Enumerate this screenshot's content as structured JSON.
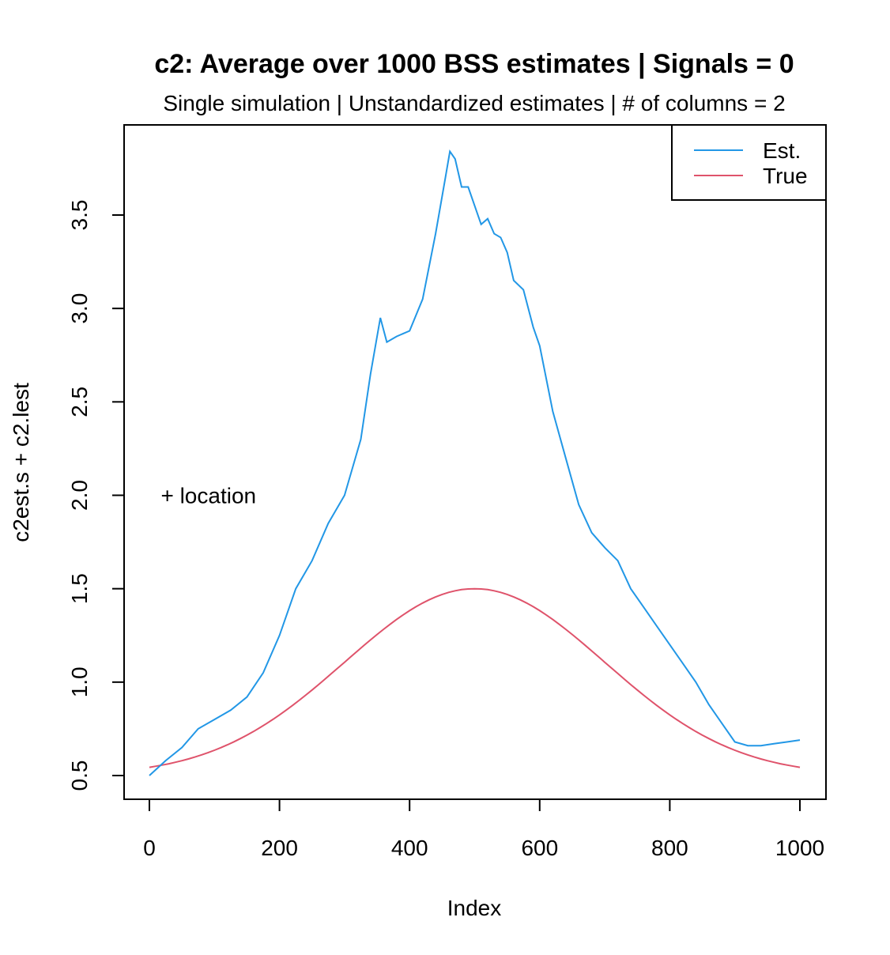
{
  "chart_data": {
    "type": "line",
    "title": "c2: Average over 1000 BSS estimates  |  Signals = 0",
    "subtitle": "Single simulation  |  Unstandardized estimates  |  # of columns = 2",
    "xlabel": "Index",
    "ylabel": "c2est.s + c2.lest",
    "xlim": [
      0,
      1000
    ],
    "ylim": [
      0.5,
      3.85
    ],
    "x_ticks": [
      0,
      200,
      400,
      600,
      800,
      1000
    ],
    "x_tick_labels": [
      "0",
      "200",
      "400",
      "600",
      "800",
      "1000"
    ],
    "y_ticks": [
      0.5,
      1.0,
      1.5,
      2.0,
      2.5,
      3.0,
      3.5
    ],
    "y_tick_labels": [
      "0.5",
      "1.0",
      "1.5",
      "2.0",
      "2.5",
      "3.0",
      "3.5"
    ],
    "grid": false,
    "legend_position": "top-right",
    "annotation": {
      "text": "+ location",
      "x": 20,
      "y": 2.0
    },
    "series": [
      {
        "name": "Est.",
        "color": "#2297E6",
        "x": [
          0,
          25,
          50,
          75,
          100,
          125,
          150,
          175,
          200,
          225,
          250,
          275,
          300,
          325,
          340,
          355,
          365,
          380,
          400,
          420,
          440,
          455,
          462,
          470,
          480,
          490,
          500,
          510,
          520,
          530,
          540,
          550,
          560,
          575,
          590,
          600,
          620,
          640,
          660,
          680,
          700,
          720,
          740,
          760,
          780,
          800,
          820,
          840,
          860,
          880,
          900,
          920,
          940,
          960,
          980,
          1000
        ],
        "y": [
          0.5,
          0.58,
          0.65,
          0.75,
          0.8,
          0.85,
          0.92,
          1.05,
          1.25,
          1.5,
          1.65,
          1.85,
          2.0,
          2.3,
          2.65,
          2.95,
          2.82,
          2.85,
          2.88,
          3.05,
          3.4,
          3.7,
          3.84,
          3.8,
          3.65,
          3.65,
          3.55,
          3.45,
          3.48,
          3.4,
          3.38,
          3.3,
          3.15,
          3.1,
          2.9,
          2.8,
          2.45,
          2.2,
          1.95,
          1.8,
          1.72,
          1.65,
          1.5,
          1.4,
          1.3,
          1.2,
          1.1,
          1.0,
          0.88,
          0.78,
          0.68,
          0.66,
          0.66,
          0.67,
          0.68,
          0.69
        ]
      },
      {
        "name": "True",
        "color": "#DF536B",
        "x": [
          0,
          50,
          100,
          150,
          200,
          250,
          300,
          350,
          400,
          450,
          500,
          550,
          600,
          650,
          700,
          750,
          800,
          850,
          900,
          950,
          1000
        ],
        "y": [
          0.54,
          0.58,
          0.64,
          0.72,
          0.82,
          0.95,
          1.09,
          1.23,
          1.36,
          1.46,
          1.5,
          1.46,
          1.36,
          1.23,
          1.09,
          0.95,
          0.82,
          0.72,
          0.64,
          0.58,
          0.54
        ]
      }
    ]
  }
}
